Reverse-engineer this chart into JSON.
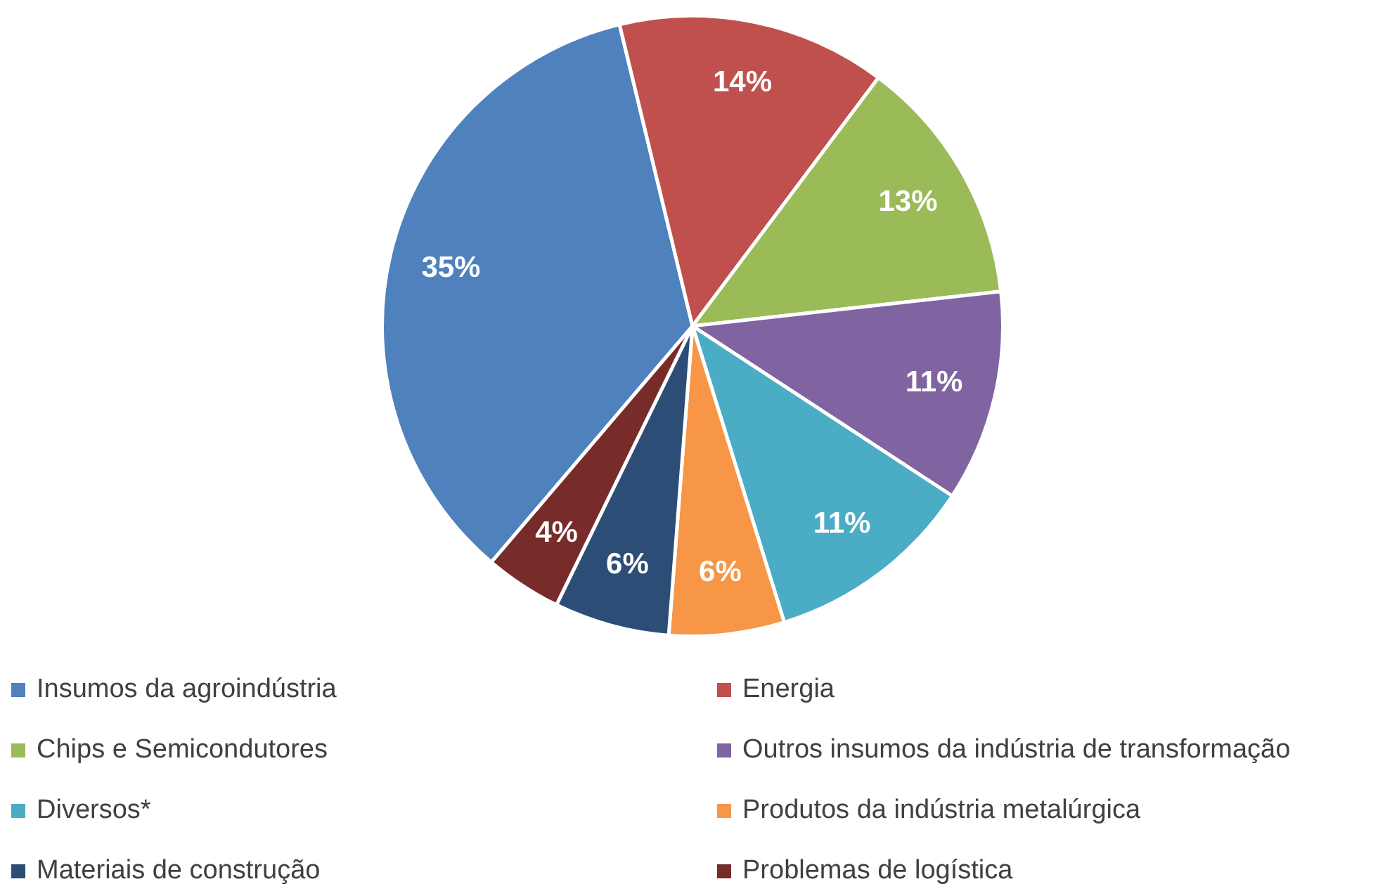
{
  "chart_data": {
    "type": "pie",
    "categories": [
      "Insumos da agroindústria",
      "Energia",
      "Chips e Semicondutores",
      "Outros insumos da indústria de transformação",
      "Diversos*",
      "Produtos da indústria metalúrgica",
      "Materiais de construção",
      "Problemas de logística"
    ],
    "values": [
      35,
      14,
      13,
      11,
      11,
      6,
      6,
      4
    ],
    "colors": [
      "#4f81bd",
      "#c0504d",
      "#9bbb59",
      "#8064a2",
      "#4bacc6",
      "#f79646",
      "#2c4d75",
      "#772c2a"
    ],
    "value_labels": [
      "35%",
      "14%",
      "13%",
      "11%",
      "11%",
      "6%",
      "6%",
      "4%"
    ],
    "legend": "bottom"
  }
}
